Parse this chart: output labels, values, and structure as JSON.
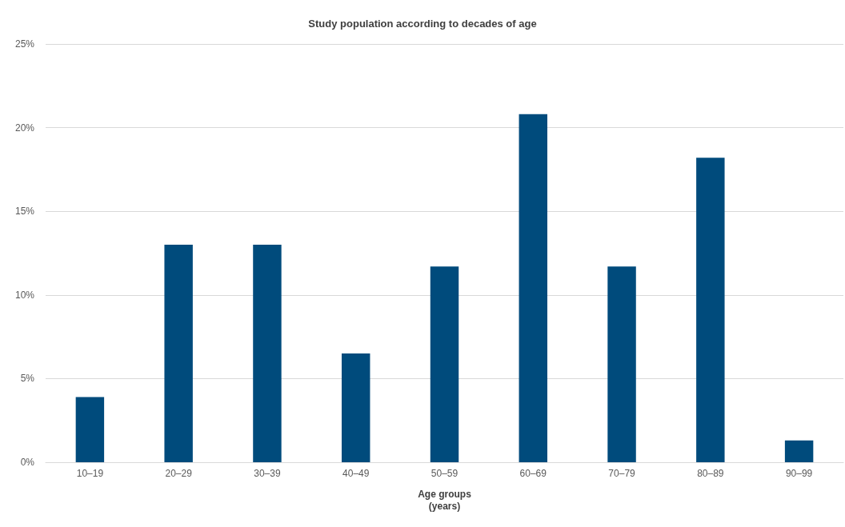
{
  "chart_data": {
    "type": "bar",
    "title": "Study population according to decades of age",
    "xlabel": "Age groups\n(years)",
    "categories": [
      "10–19",
      "20–29",
      "30–39",
      "40–49",
      "50–59",
      "60–69",
      "70–79",
      "80–89",
      "90–99"
    ],
    "values": [
      3.9,
      13.0,
      13.0,
      6.5,
      11.7,
      20.8,
      11.7,
      18.2,
      1.3
    ],
    "color": "#004b7c",
    "ylim": [
      0,
      25
    ],
    "yticks": [
      {
        "value": 0,
        "label": "0%"
      },
      {
        "value": 5,
        "label": "5%"
      },
      {
        "value": 10,
        "label": "10%"
      },
      {
        "value": 15,
        "label": "15%"
      },
      {
        "value": 20,
        "label": "20%"
      },
      {
        "value": 25,
        "label": "25%"
      }
    ],
    "grid": "y"
  }
}
